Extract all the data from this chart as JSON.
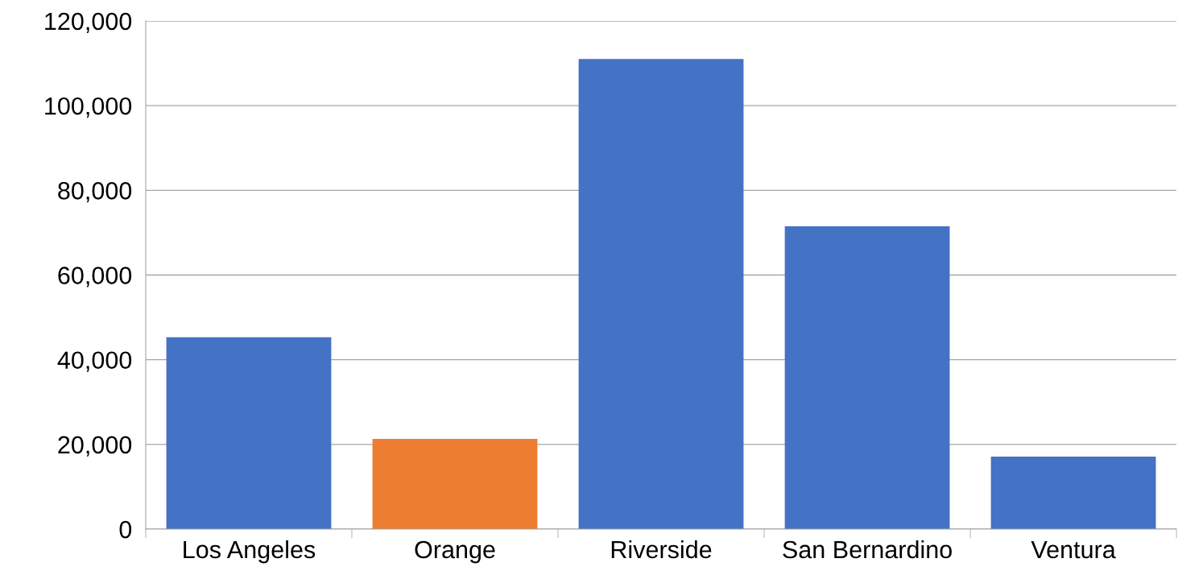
{
  "chart_data": {
    "type": "bar",
    "categories": [
      "Los Angeles",
      "Orange",
      "Riverside",
      "San Bernardino",
      "Ventura"
    ],
    "values": [
      45300,
      21300,
      111000,
      71500,
      17100
    ],
    "colors": [
      "#4472c4",
      "#ed7d31",
      "#4472c4",
      "#4472c4",
      "#4472c4"
    ],
    "ylim": [
      0,
      120000
    ],
    "yticks": [
      {
        "value": 0,
        "label": "0"
      },
      {
        "value": 20000,
        "label": "20,000"
      },
      {
        "value": 40000,
        "label": "40,000"
      },
      {
        "value": 60000,
        "label": "60,000"
      },
      {
        "value": 80000,
        "label": "80,000"
      },
      {
        "value": 100000,
        "label": "100,000"
      },
      {
        "value": 120000,
        "label": "120,000"
      }
    ],
    "grid": "y",
    "legend": false
  }
}
